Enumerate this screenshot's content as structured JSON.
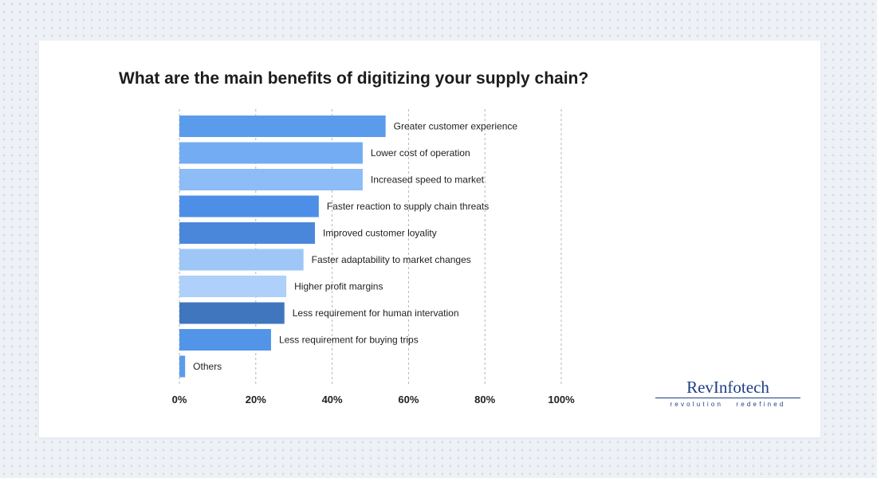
{
  "chart_data": {
    "type": "bar",
    "orientation": "horizontal",
    "title": "What are the main benefits of digitizing your supply chain?",
    "xlabel": "",
    "ylabel": "",
    "xlim": [
      0,
      100
    ],
    "x_ticks": [
      "0%",
      "20%",
      "40%",
      "60%",
      "80%",
      "100%"
    ],
    "grid": "vertical dashed",
    "categories": [
      "Greater customer experience",
      "Lower cost of operation",
      "Increased speed to market",
      "Faster reaction to supply chain threats",
      "Improved customer loyality",
      "Faster adaptability to market changes",
      "Higher profit margins",
      "Less requirement for human intervation",
      "Less requirement for buying trips",
      "Others"
    ],
    "values": [
      54,
      48,
      48,
      36.5,
      35.5,
      32.5,
      28,
      27.5,
      24,
      1.5
    ],
    "bar_colors": [
      "#5b9bec",
      "#74acf3",
      "#8dbcf6",
      "#4d8fe6",
      "#4a87db",
      "#9ec7f8",
      "#aed0fa",
      "#3f76be",
      "#5295e8",
      "#5b9bec"
    ]
  },
  "logo": {
    "name": "RevInfotech",
    "tagline": "revolution   redefined"
  }
}
